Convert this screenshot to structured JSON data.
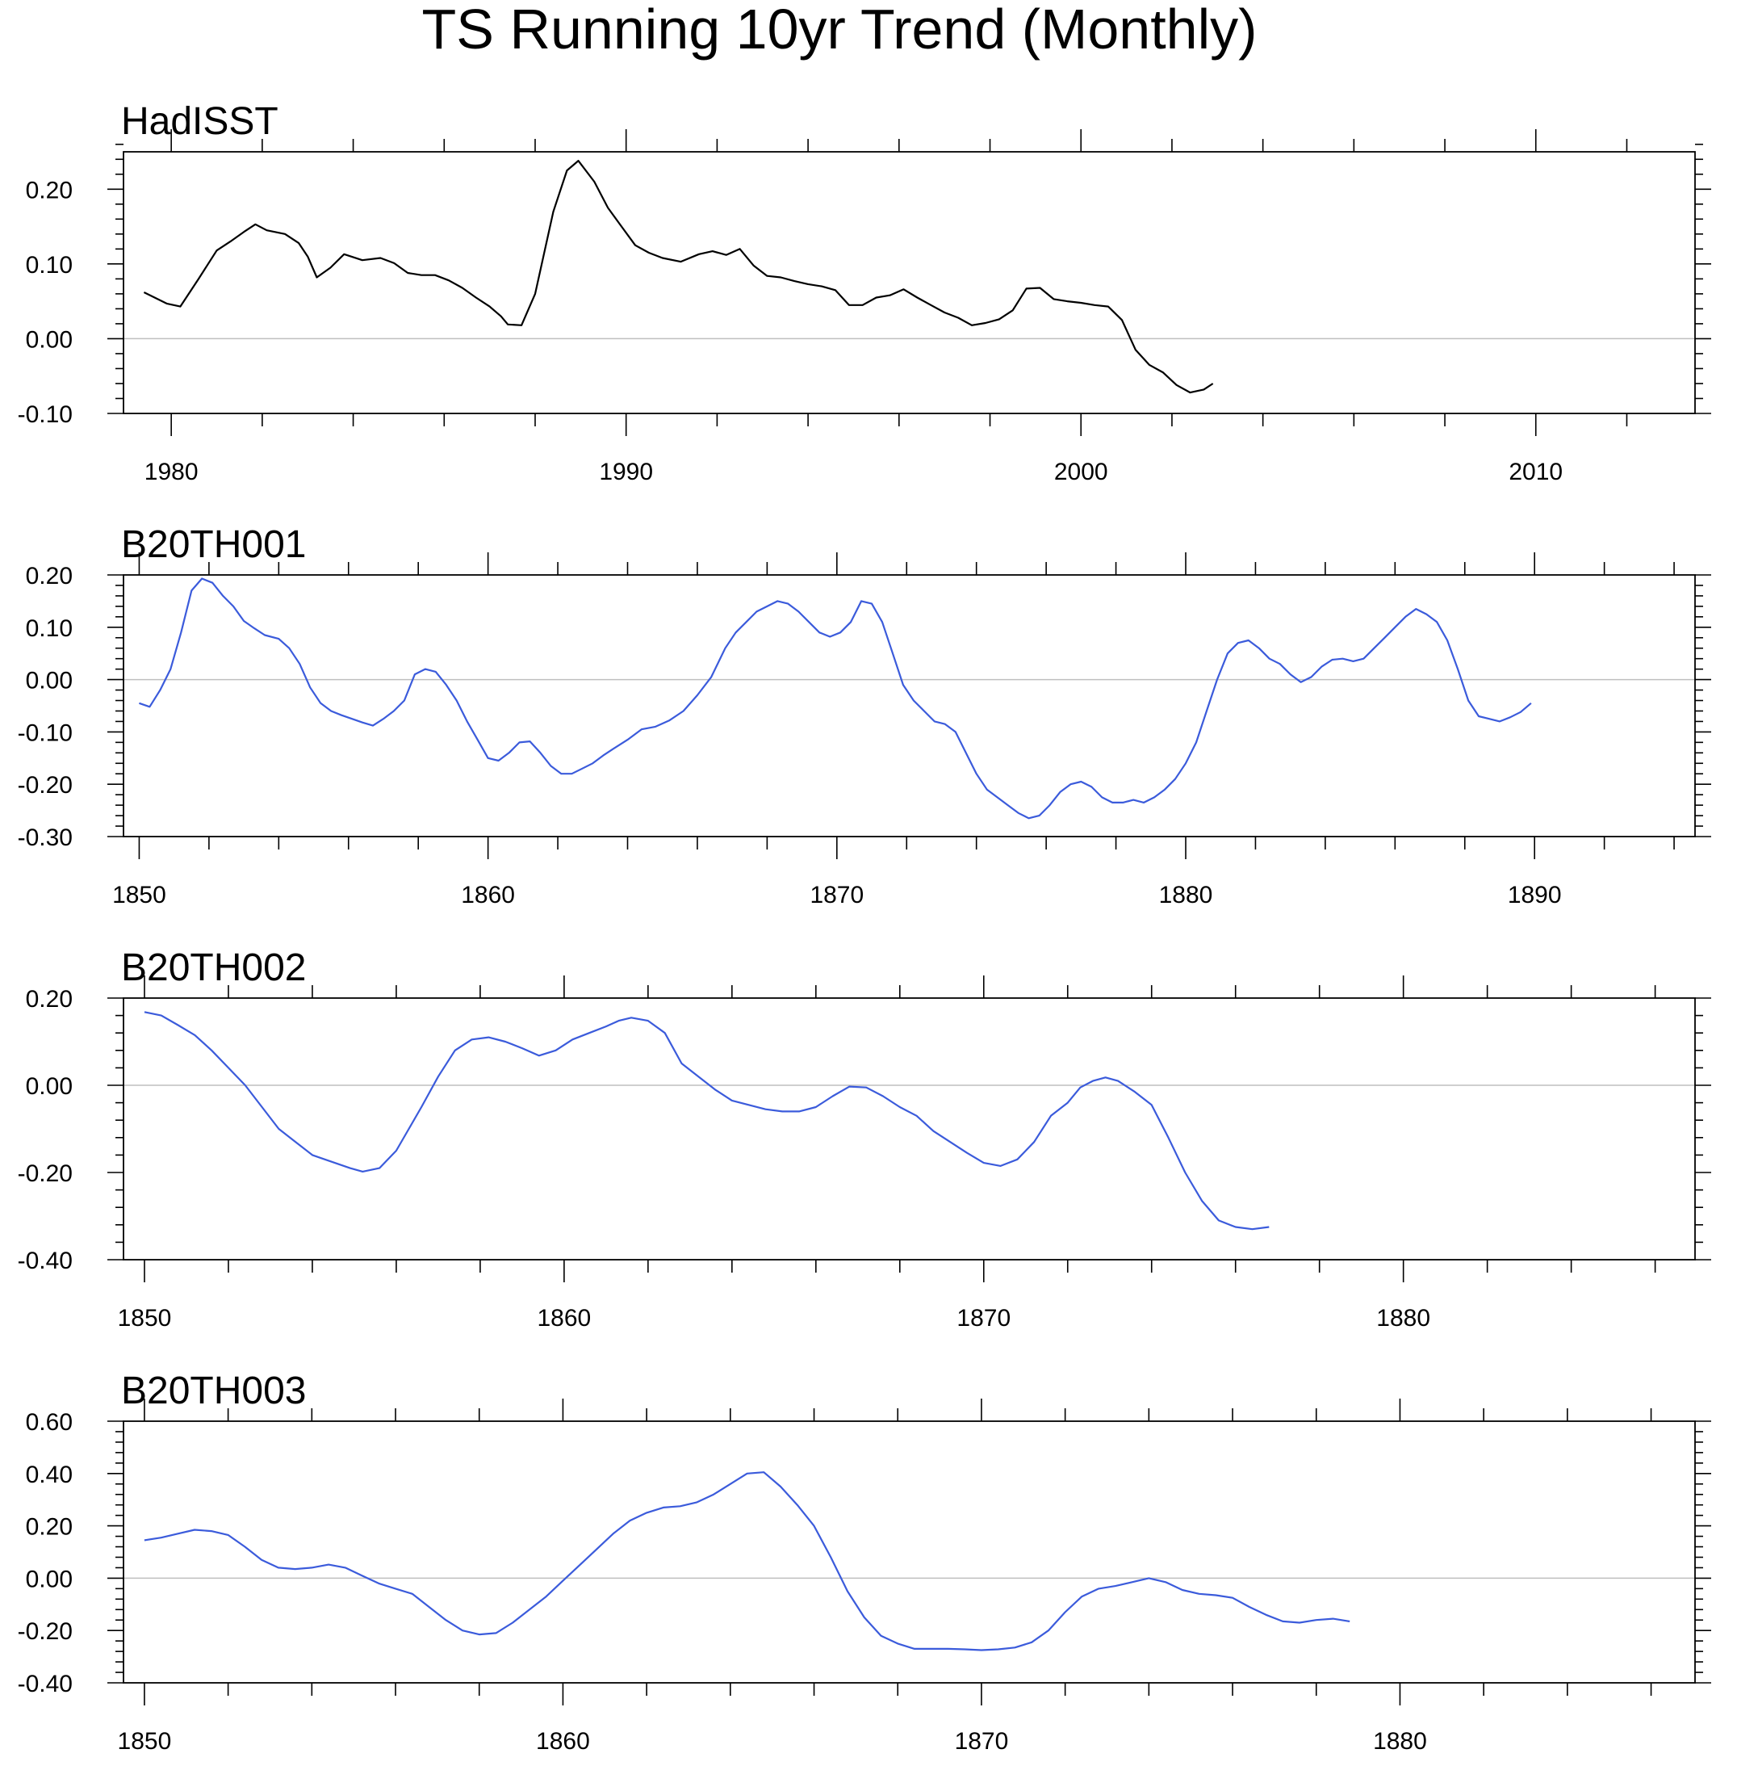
{
  "colors": {
    "hadisst": "#000000",
    "model": "#3b5bdb",
    "zero_line": "#bfbfbf",
    "frame": "#000000"
  },
  "chart_data": [
    {
      "type": "line",
      "figure_title": "TS Running 10yr Trend (Monthly)",
      "title": "HadISST",
      "xlabel": "",
      "ylabel": "",
      "xlim": [
        1978.95,
        2013.5
      ],
      "ylim": [
        -0.1,
        0.25
      ],
      "xticks": [
        1980,
        1990,
        2000,
        2010
      ],
      "xtick_labels": [
        "1980",
        "1990",
        "2000",
        "2010"
      ],
      "yticks": [
        -0.1,
        0.0,
        0.1,
        0.2
      ],
      "ytick_labels": [
        "-0.10",
        "0.00",
        "0.10",
        "0.20"
      ],
      "series": [
        {
          "name": "HadISST",
          "color": "#000000",
          "x": [
            1979.4,
            1979.9,
            1980.2,
            1980.6,
            1981.0,
            1981.3,
            1981.6,
            1981.85,
            1982.1,
            1982.5,
            1982.8,
            1983.0,
            1983.2,
            1983.5,
            1983.8,
            1984.2,
            1984.6,
            1984.9,
            1985.2,
            1985.5,
            1985.8,
            1986.1,
            1986.4,
            1986.7,
            1987.0,
            1987.25,
            1987.4,
            1987.7,
            1988.0,
            1988.4,
            1988.7,
            1988.95,
            1989.3,
            1989.6,
            1989.9,
            1990.2,
            1990.5,
            1990.8,
            1991.2,
            1991.6,
            1991.9,
            1992.2,
            1992.5,
            1992.8,
            1993.1,
            1993.4,
            1993.7,
            1994.0,
            1994.3,
            1994.6,
            1994.9,
            1995.2,
            1995.5,
            1995.8,
            1996.1,
            1996.4,
            1996.7,
            1997.0,
            1997.3,
            1997.6,
            1997.9,
            1998.2,
            1998.5,
            1998.8,
            1999.1,
            1999.4,
            1999.7,
            2000.0,
            2000.3,
            2000.6,
            2000.9,
            2001.2,
            2001.5,
            2001.8,
            2002.1,
            2002.4,
            2002.7,
            2002.9
          ],
          "y": [
            0.062,
            0.047,
            0.043,
            0.08,
            0.118,
            0.13,
            0.143,
            0.153,
            0.145,
            0.14,
            0.128,
            0.11,
            0.082,
            0.095,
            0.113,
            0.105,
            0.108,
            0.101,
            0.088,
            0.085,
            0.085,
            0.078,
            0.068,
            0.055,
            0.043,
            0.03,
            0.019,
            0.018,
            0.06,
            0.17,
            0.225,
            0.238,
            0.21,
            0.175,
            0.15,
            0.125,
            0.115,
            0.108,
            0.103,
            0.113,
            0.117,
            0.112,
            0.12,
            0.098,
            0.084,
            0.082,
            0.077,
            0.073,
            0.07,
            0.065,
            0.045,
            0.045,
            0.055,
            0.058,
            0.066,
            0.055,
            0.045,
            0.035,
            0.028,
            0.018,
            0.021,
            0.026,
            0.038,
            0.067,
            0.068,
            0.053,
            0.05,
            0.048,
            0.045,
            0.043,
            0.025,
            -0.015,
            -0.035,
            -0.045,
            -0.062,
            -0.072,
            -0.068,
            -0.06
          ]
        }
      ]
    },
    {
      "type": "line",
      "title": "B20TH001",
      "xlabel": "",
      "ylabel": "",
      "xlim": [
        1849.55,
        1894.6
      ],
      "ylim": [
        -0.3,
        0.2
      ],
      "xticks": [
        1850,
        1860,
        1870,
        1880,
        1890
      ],
      "xtick_labels": [
        "1850",
        "1860",
        "1870",
        "1880",
        "1890"
      ],
      "yticks": [
        -0.3,
        -0.2,
        -0.1,
        0.0,
        0.1,
        0.2
      ],
      "ytick_labels": [
        "-0.30",
        "-0.20",
        "-0.10",
        "0.00",
        "0.10",
        "0.20"
      ],
      "series": [
        {
          "name": "B20TH001",
          "color": "#3b5bdb",
          "x": [
            1850.0,
            1850.3,
            1850.6,
            1850.9,
            1851.2,
            1851.5,
            1851.8,
            1852.1,
            1852.4,
            1852.7,
            1853.0,
            1853.3,
            1853.6,
            1854.0,
            1854.3,
            1854.6,
            1854.9,
            1855.2,
            1855.5,
            1855.8,
            1856.1,
            1856.4,
            1856.7,
            1857.0,
            1857.3,
            1857.6,
            1857.9,
            1858.2,
            1858.5,
            1858.8,
            1859.1,
            1859.4,
            1859.7,
            1860.0,
            1860.3,
            1860.6,
            1860.9,
            1861.2,
            1861.5,
            1861.8,
            1862.1,
            1862.4,
            1862.7,
            1863.0,
            1863.3,
            1863.6,
            1864.0,
            1864.4,
            1864.8,
            1865.2,
            1865.6,
            1866.0,
            1866.4,
            1866.8,
            1867.1,
            1867.4,
            1867.7,
            1868.0,
            1868.3,
            1868.6,
            1868.9,
            1869.2,
            1869.5,
            1869.8,
            1870.1,
            1870.4,
            1870.7,
            1871.0,
            1871.3,
            1871.6,
            1871.9,
            1872.2,
            1872.5,
            1872.8,
            1873.1,
            1873.4,
            1873.7,
            1874.0,
            1874.3,
            1874.6,
            1874.9,
            1875.2,
            1875.5,
            1875.8,
            1876.1,
            1876.4,
            1876.7,
            1877.0,
            1877.3,
            1877.6,
            1877.9,
            1878.2,
            1878.5,
            1878.8,
            1879.1,
            1879.4,
            1879.7,
            1880.0,
            1880.3,
            1880.6,
            1880.9,
            1881.2,
            1881.5,
            1881.8,
            1882.1,
            1882.4,
            1882.7,
            1883.0,
            1883.3,
            1883.6,
            1883.9,
            1884.2,
            1884.5,
            1884.8,
            1885.1,
            1885.4,
            1885.7,
            1886.0,
            1886.3,
            1886.6,
            1886.9,
            1887.2,
            1887.5,
            1887.8,
            1888.1,
            1888.4,
            1888.7,
            1889.0,
            1889.3,
            1889.6,
            1889.9
          ],
          "y": [
            -0.045,
            -0.052,
            -0.02,
            0.02,
            0.09,
            0.17,
            0.193,
            0.185,
            0.16,
            0.14,
            0.112,
            0.098,
            0.085,
            0.078,
            0.06,
            0.03,
            -0.015,
            -0.045,
            -0.06,
            -0.068,
            -0.075,
            -0.082,
            -0.088,
            -0.075,
            -0.06,
            -0.04,
            0.01,
            0.02,
            0.015,
            -0.01,
            -0.04,
            -0.08,
            -0.115,
            -0.15,
            -0.155,
            -0.14,
            -0.12,
            -0.118,
            -0.14,
            -0.165,
            -0.18,
            -0.18,
            -0.17,
            -0.16,
            -0.145,
            -0.132,
            -0.115,
            -0.095,
            -0.09,
            -0.078,
            -0.06,
            -0.03,
            0.005,
            0.06,
            0.09,
            0.11,
            0.13,
            0.14,
            0.15,
            0.145,
            0.13,
            0.11,
            0.09,
            0.082,
            0.09,
            0.11,
            0.15,
            0.145,
            0.11,
            0.05,
            -0.01,
            -0.04,
            -0.06,
            -0.08,
            -0.085,
            -0.1,
            -0.14,
            -0.18,
            -0.21,
            -0.225,
            -0.24,
            -0.255,
            -0.265,
            -0.26,
            -0.24,
            -0.215,
            -0.2,
            -0.195,
            -0.205,
            -0.225,
            -0.235,
            -0.235,
            -0.23,
            -0.235,
            -0.225,
            -0.21,
            -0.19,
            -0.16,
            -0.12,
            -0.06,
            0.0,
            0.05,
            0.07,
            0.075,
            0.06,
            0.04,
            0.03,
            0.01,
            -0.005,
            0.005,
            0.025,
            0.038,
            0.04,
            0.035,
            0.04,
            0.06,
            0.08,
            0.1,
            0.12,
            0.135,
            0.125,
            0.11,
            0.075,
            0.02,
            -0.04,
            -0.07,
            -0.075,
            -0.08,
            -0.072,
            -0.062,
            -0.045
          ]
        }
      ]
    },
    {
      "type": "line",
      "title": "B20TH002",
      "xlabel": "",
      "ylabel": "",
      "xlim": [
        1849.5,
        1886.95
      ],
      "ylim": [
        -0.4,
        0.2
      ],
      "xticks": [
        1850,
        1860,
        1870,
        1880
      ],
      "xtick_labels": [
        "1850",
        "1860",
        "1870",
        "1880"
      ],
      "yticks": [
        -0.4,
        -0.2,
        0.0,
        0.2
      ],
      "ytick_labels": [
        "-0.40",
        "-0.20",
        "0.00",
        "0.20"
      ],
      "series": [
        {
          "name": "B20TH002",
          "color": "#3b5bdb",
          "x": [
            1850.0,
            1850.4,
            1850.8,
            1851.2,
            1851.6,
            1852.0,
            1852.4,
            1852.8,
            1853.2,
            1853.6,
            1854.0,
            1854.3,
            1854.6,
            1854.9,
            1855.2,
            1855.6,
            1856.0,
            1856.3,
            1856.6,
            1857.0,
            1857.4,
            1857.8,
            1858.2,
            1858.6,
            1859.0,
            1859.4,
            1859.8,
            1860.2,
            1860.6,
            1861.0,
            1861.3,
            1861.6,
            1862.0,
            1862.4,
            1862.8,
            1863.2,
            1863.6,
            1864.0,
            1864.4,
            1864.8,
            1865.2,
            1865.6,
            1866.0,
            1866.4,
            1866.8,
            1867.2,
            1867.6,
            1868.0,
            1868.4,
            1868.8,
            1869.2,
            1869.6,
            1870.0,
            1870.4,
            1870.8,
            1871.2,
            1871.6,
            1872.0,
            1872.3,
            1872.6,
            1872.9,
            1873.2,
            1873.6,
            1874.0,
            1874.4,
            1874.8,
            1875.2,
            1875.6,
            1876.0,
            1876.4,
            1876.8
          ],
          "y": [
            0.168,
            0.16,
            0.138,
            0.115,
            0.08,
            0.04,
            0.0,
            -0.05,
            -0.1,
            -0.13,
            -0.16,
            -0.17,
            -0.18,
            -0.19,
            -0.198,
            -0.19,
            -0.15,
            -0.1,
            -0.05,
            0.02,
            0.08,
            0.105,
            0.11,
            0.1,
            0.085,
            0.068,
            0.08,
            0.105,
            0.12,
            0.135,
            0.148,
            0.155,
            0.148,
            0.12,
            0.05,
            0.02,
            -0.01,
            -0.035,
            -0.045,
            -0.055,
            -0.06,
            -0.06,
            -0.05,
            -0.025,
            -0.003,
            -0.005,
            -0.025,
            -0.05,
            -0.07,
            -0.105,
            -0.13,
            -0.155,
            -0.178,
            -0.185,
            -0.17,
            -0.13,
            -0.07,
            -0.04,
            -0.005,
            0.01,
            0.018,
            0.01,
            -0.015,
            -0.045,
            -0.12,
            -0.2,
            -0.265,
            -0.31,
            -0.325,
            -0.33,
            -0.325
          ]
        }
      ]
    },
    {
      "type": "line",
      "title": "B20TH003",
      "xlabel": "",
      "ylabel": "",
      "xlim": [
        1849.5,
        1887.05
      ],
      "ylim": [
        -0.4,
        0.6
      ],
      "xticks": [
        1850,
        1860,
        1870,
        1880
      ],
      "xtick_labels": [
        "1850",
        "1860",
        "1870",
        "1880"
      ],
      "yticks": [
        -0.4,
        -0.2,
        0.0,
        0.2,
        0.4,
        0.6
      ],
      "ytick_labels": [
        "-0.40",
        "-0.20",
        "0.00",
        "0.20",
        "0.40",
        "0.60"
      ],
      "series": [
        {
          "name": "B20TH003",
          "color": "#3b5bdb",
          "x": [
            1850.0,
            1850.4,
            1850.8,
            1851.2,
            1851.6,
            1852.0,
            1852.4,
            1852.8,
            1853.2,
            1853.6,
            1854.0,
            1854.4,
            1854.8,
            1855.2,
            1855.6,
            1856.0,
            1856.4,
            1856.8,
            1857.2,
            1857.6,
            1858.0,
            1858.4,
            1858.8,
            1859.2,
            1859.6,
            1860.0,
            1860.4,
            1860.8,
            1861.2,
            1861.6,
            1862.0,
            1862.4,
            1862.8,
            1863.2,
            1863.6,
            1864.0,
            1864.4,
            1864.8,
            1865.2,
            1865.6,
            1866.0,
            1866.4,
            1866.8,
            1867.2,
            1867.6,
            1868.0,
            1868.4,
            1868.8,
            1869.2,
            1869.6,
            1870.0,
            1870.4,
            1870.8,
            1871.2,
            1871.6,
            1872.0,
            1872.4,
            1872.8,
            1873.2,
            1873.6,
            1874.0,
            1874.4,
            1874.8,
            1875.2,
            1875.6,
            1876.0,
            1876.4,
            1876.8,
            1877.2,
            1877.6,
            1878.0,
            1878.4,
            1878.8
          ],
          "y": [
            0.145,
            0.155,
            0.17,
            0.185,
            0.18,
            0.165,
            0.12,
            0.07,
            0.04,
            0.035,
            0.04,
            0.052,
            0.04,
            0.01,
            -0.02,
            -0.04,
            -0.06,
            -0.11,
            -0.16,
            -0.2,
            -0.215,
            -0.21,
            -0.17,
            -0.12,
            -0.07,
            -0.01,
            0.05,
            0.11,
            0.17,
            0.22,
            0.25,
            0.27,
            0.275,
            0.29,
            0.32,
            0.36,
            0.4,
            0.405,
            0.35,
            0.28,
            0.2,
            0.08,
            -0.05,
            -0.15,
            -0.22,
            -0.25,
            -0.27,
            -0.27,
            -0.27,
            -0.272,
            -0.275,
            -0.272,
            -0.265,
            -0.245,
            -0.2,
            -0.13,
            -0.07,
            -0.04,
            -0.03,
            -0.015,
            0.0,
            -0.015,
            -0.045,
            -0.06,
            -0.065,
            -0.075,
            -0.11,
            -0.14,
            -0.165,
            -0.17,
            -0.16,
            -0.155,
            -0.165
          ]
        }
      ]
    }
  ]
}
